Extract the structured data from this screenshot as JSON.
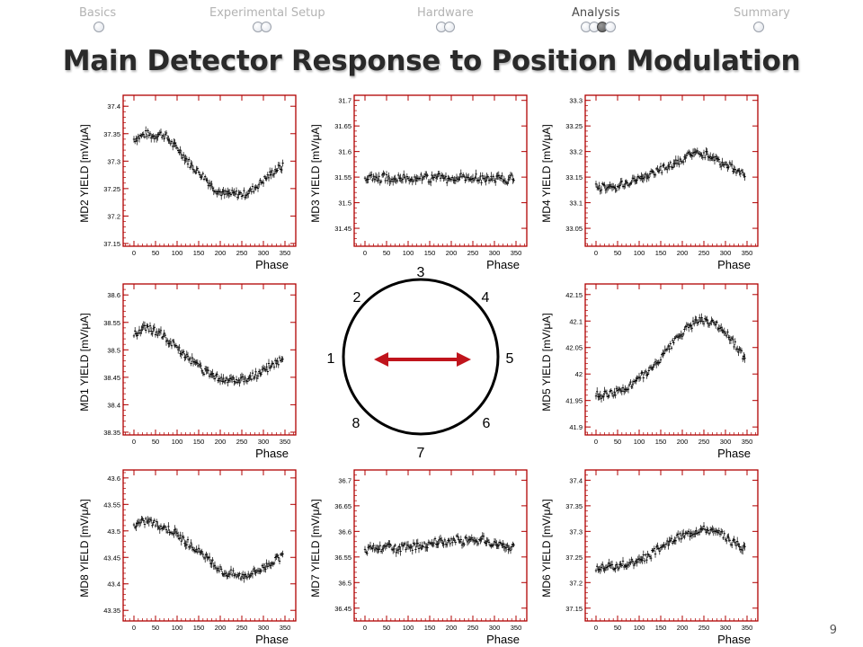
{
  "nav": {
    "sections": [
      {
        "label": "Basics",
        "dots": 1,
        "current_dot": -1
      },
      {
        "label": "Experimental Setup",
        "dots": 2,
        "current_dot": -1
      },
      {
        "label": "Hardware",
        "dots": 2,
        "current_dot": -1
      },
      {
        "label": "Analysis",
        "dots": 4,
        "current_dot": 2
      },
      {
        "label": "Summary",
        "dots": 1,
        "current_dot": -1
      }
    ],
    "active_section": "Analysis"
  },
  "title": "Main Detector Response to Position Modulation",
  "slide_number": "9",
  "diagram": {
    "labels": [
      "1",
      "2",
      "3",
      "4",
      "5",
      "6",
      "7",
      "8"
    ],
    "arrow_color": "#c0141c",
    "arrow_direction": "horizontal, double-headed"
  },
  "colors": {
    "frame": "#b00000",
    "data": "#000000",
    "title_shadow": "#b9b9b9"
  },
  "chart_data": [
    {
      "type": "scatter",
      "id": "md2",
      "ylabel": "MD2 YIELD [mV/μA]",
      "xlabel": "Phase",
      "xlim": [
        -25,
        375
      ],
      "ylim": [
        37.145,
        37.42
      ],
      "xticks": [
        "0",
        "50",
        "100",
        "150",
        "200",
        "250",
        "300",
        "350"
      ],
      "yticks": [
        "37.15",
        "37.2",
        "37.25",
        "37.3",
        "37.35",
        "37.4"
      ],
      "x": [
        0,
        15,
        30,
        45,
        60,
        75,
        90,
        105,
        120,
        135,
        150,
        165,
        180,
        195,
        210,
        225,
        240,
        255,
        270,
        285,
        300,
        315,
        330,
        345
      ],
      "y": [
        37.34,
        37.345,
        37.35,
        37.345,
        37.35,
        37.345,
        37.33,
        37.32,
        37.305,
        37.29,
        37.28,
        37.27,
        37.255,
        37.245,
        37.24,
        37.24,
        37.24,
        37.24,
        37.245,
        37.255,
        37.265,
        37.275,
        37.285,
        37.29
      ]
    },
    {
      "type": "scatter",
      "id": "md3",
      "ylabel": "MD3 YIELD [mV/μA]",
      "xlabel": "Phase",
      "xlim": [
        -25,
        375
      ],
      "ylim": [
        31.415,
        31.71
      ],
      "xticks": [
        "0",
        "50",
        "100",
        "150",
        "200",
        "250",
        "300",
        "350"
      ],
      "yticks": [
        "31.45",
        "31.5",
        "31.55",
        "31.6",
        "31.65",
        "31.7"
      ],
      "x": [
        0,
        15,
        30,
        45,
        60,
        75,
        90,
        105,
        120,
        135,
        150,
        165,
        180,
        195,
        210,
        225,
        240,
        255,
        270,
        285,
        300,
        315,
        330,
        345
      ],
      "y": [
        31.545,
        31.55,
        31.545,
        31.55,
        31.545,
        31.55,
        31.55,
        31.545,
        31.55,
        31.55,
        31.545,
        31.55,
        31.55,
        31.545,
        31.55,
        31.55,
        31.545,
        31.55,
        31.545,
        31.55,
        31.545,
        31.55,
        31.545,
        31.55
      ]
    },
    {
      "type": "scatter",
      "id": "md4",
      "ylabel": "MD4 YIELD [mV/μA]",
      "xlabel": "Phase",
      "xlim": [
        -25,
        375
      ],
      "ylim": [
        33.015,
        33.31
      ],
      "xticks": [
        "0",
        "50",
        "100",
        "150",
        "200",
        "250",
        "300",
        "350"
      ],
      "yticks": [
        "33.05",
        "33.1",
        "33.15",
        "33.2",
        "33.25",
        "33.3"
      ],
      "x": [
        0,
        15,
        30,
        45,
        60,
        75,
        90,
        105,
        120,
        135,
        150,
        165,
        180,
        195,
        210,
        225,
        240,
        255,
        270,
        285,
        300,
        315,
        330,
        345
      ],
      "y": [
        33.13,
        33.13,
        33.13,
        33.13,
        33.135,
        33.14,
        33.145,
        33.15,
        33.155,
        33.16,
        33.165,
        33.17,
        33.175,
        33.18,
        33.19,
        33.195,
        33.195,
        33.195,
        33.19,
        33.18,
        33.175,
        33.17,
        33.16,
        33.155
      ]
    },
    {
      "type": "scatter",
      "id": "md1",
      "ylabel": "MD1 YIELD [mV/μA]",
      "xlabel": "Phase",
      "xlim": [
        -25,
        375
      ],
      "ylim": [
        38.345,
        38.62
      ],
      "xticks": [
        "0",
        "50",
        "100",
        "150",
        "200",
        "250",
        "300",
        "350"
      ],
      "yticks": [
        "38.35",
        "38.4",
        "38.45",
        "38.5",
        "38.55",
        "38.6"
      ],
      "x": [
        0,
        15,
        30,
        45,
        60,
        75,
        90,
        105,
        120,
        135,
        150,
        165,
        180,
        195,
        210,
        225,
        240,
        255,
        270,
        285,
        300,
        315,
        330,
        345
      ],
      "y": [
        38.53,
        38.535,
        38.54,
        38.535,
        38.53,
        38.52,
        38.51,
        38.5,
        38.49,
        38.48,
        38.47,
        38.46,
        38.455,
        38.45,
        38.445,
        38.445,
        38.445,
        38.445,
        38.45,
        38.455,
        38.46,
        38.47,
        38.475,
        38.485
      ]
    },
    {
      "type": "scatter",
      "id": "md5",
      "ylabel": "MD5 YIELD [mV/μA]",
      "xlabel": "Phase",
      "xlim": [
        -25,
        375
      ],
      "ylim": [
        41.885,
        42.17
      ],
      "xticks": [
        "0",
        "50",
        "100",
        "150",
        "200",
        "250",
        "300",
        "350"
      ],
      "yticks": [
        "41.9",
        "41.95",
        "42",
        "42.05",
        "42.1",
        "42.15"
      ],
      "x": [
        0,
        15,
        30,
        45,
        60,
        75,
        90,
        105,
        120,
        135,
        150,
        165,
        180,
        195,
        210,
        225,
        240,
        255,
        270,
        285,
        300,
        315,
        330,
        345
      ],
      "y": [
        41.96,
        41.96,
        41.965,
        41.965,
        41.97,
        41.975,
        41.985,
        41.995,
        42.005,
        42.015,
        42.03,
        42.045,
        42.06,
        42.075,
        42.085,
        42.095,
        42.1,
        42.1,
        42.095,
        42.09,
        42.08,
        42.065,
        42.045,
        42.03
      ]
    },
    {
      "type": "scatter",
      "id": "md8",
      "ylabel": "MD8 YIELD [mV/μA]",
      "xlabel": "Phase",
      "xlim": [
        -25,
        375
      ],
      "ylim": [
        43.33,
        43.615
      ],
      "xticks": [
        "0",
        "50",
        "100",
        "150",
        "200",
        "250",
        "300",
        "350"
      ],
      "yticks": [
        "43.35",
        "43.4",
        "43.45",
        "43.5",
        "43.55",
        "43.6"
      ],
      "x": [
        0,
        15,
        30,
        45,
        60,
        75,
        90,
        105,
        120,
        135,
        150,
        165,
        180,
        195,
        210,
        225,
        240,
        255,
        270,
        285,
        300,
        315,
        330,
        345
      ],
      "y": [
        43.51,
        43.515,
        43.52,
        43.515,
        43.51,
        43.505,
        43.5,
        43.49,
        43.48,
        43.47,
        43.46,
        43.45,
        43.44,
        43.43,
        43.42,
        43.42,
        43.415,
        43.415,
        43.42,
        43.425,
        43.43,
        43.44,
        43.445,
        43.455
      ]
    },
    {
      "type": "scatter",
      "id": "md7",
      "ylabel": "MD7 YIELD [mV/μA]",
      "xlabel": "Phase",
      "xlim": [
        -25,
        375
      ],
      "ylim": [
        36.425,
        36.72
      ],
      "xticks": [
        "0",
        "50",
        "100",
        "150",
        "200",
        "250",
        "300",
        "350"
      ],
      "yticks": [
        "36.45",
        "36.5",
        "36.55",
        "36.6",
        "36.65",
        "36.7"
      ],
      "x": [
        0,
        15,
        30,
        45,
        60,
        75,
        90,
        105,
        120,
        135,
        150,
        165,
        180,
        195,
        210,
        225,
        240,
        255,
        270,
        285,
        300,
        315,
        330,
        345
      ],
      "y": [
        36.56,
        36.565,
        36.565,
        36.565,
        36.57,
        36.565,
        36.57,
        36.57,
        36.57,
        36.575,
        36.575,
        36.58,
        36.58,
        36.58,
        36.585,
        36.58,
        36.585,
        36.58,
        36.585,
        36.58,
        36.575,
        36.575,
        36.57,
        36.57
      ]
    },
    {
      "type": "scatter",
      "id": "md6",
      "ylabel": "MD6 YIELD [mV/μA]",
      "xlabel": "Phase",
      "xlim": [
        -25,
        375
      ],
      "ylim": [
        37.125,
        37.42
      ],
      "xticks": [
        "0",
        "50",
        "100",
        "150",
        "200",
        "250",
        "300",
        "350"
      ],
      "yticks": [
        "37.15",
        "37.2",
        "37.25",
        "37.3",
        "37.35",
        "37.4"
      ],
      "x": [
        0,
        15,
        30,
        45,
        60,
        75,
        90,
        105,
        120,
        135,
        150,
        165,
        180,
        195,
        210,
        225,
        240,
        255,
        270,
        285,
        300,
        315,
        330,
        345
      ],
      "y": [
        37.23,
        37.23,
        37.235,
        37.23,
        37.235,
        37.235,
        37.24,
        37.245,
        37.25,
        37.26,
        37.27,
        37.275,
        37.285,
        37.29,
        37.295,
        37.3,
        37.305,
        37.305,
        37.3,
        37.295,
        37.29,
        37.28,
        37.275,
        37.265
      ]
    }
  ]
}
